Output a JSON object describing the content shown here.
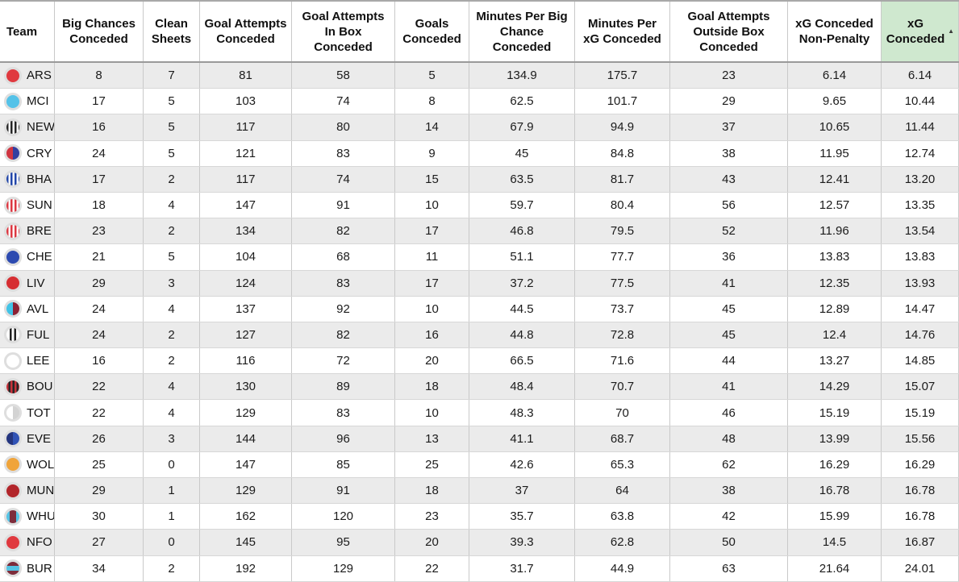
{
  "table": {
    "sort_indicator": "▲",
    "sorted_column": "xG Conceded",
    "sort_direction": "ascending",
    "colors": {
      "sorted_header_bg": "#cfe8cf",
      "stripe_row_bg": "#ebebeb",
      "cell_border": "#c9c9c9",
      "header_border": "#9a9a9a"
    },
    "columns": [
      {
        "label": "Team",
        "slug": "team",
        "sorted": false
      },
      {
        "label": "Big Chances Conceded",
        "slug": "big-chances-conceded",
        "sorted": false
      },
      {
        "label": "Clean Sheets",
        "slug": "clean-sheets",
        "sorted": false
      },
      {
        "label": "Goal Attempts Conceded",
        "slug": "goal-attempts-conceded",
        "sorted": false
      },
      {
        "label": "Goal Attempts In Box Conceded",
        "slug": "goal-attempts-in-box-conceded",
        "sorted": false
      },
      {
        "label": "Goals Conceded",
        "slug": "goals-conceded",
        "sorted": false
      },
      {
        "label": "Minutes Per Big Chance Conceded",
        "slug": "minutes-per-big-chance-conceded",
        "sorted": false
      },
      {
        "label": "Minutes Per xG Conceded",
        "slug": "minutes-per-xg-conceded",
        "sorted": false
      },
      {
        "label": "Goal Attempts Outside Box Conceded",
        "slug": "goal-attempts-outside-box-conceded",
        "sorted": false
      },
      {
        "label": "xG Conceded Non-Penalty",
        "slug": "xg-conceded-non-penalty",
        "sorted": false
      },
      {
        "label": "xG Conceded",
        "slug": "xg-conceded",
        "sorted": true
      }
    ],
    "rows": [
      {
        "team": "ARS",
        "badge_css": "#e0393f",
        "values": [
          "8",
          "7",
          "81",
          "58",
          "5",
          "134.9",
          "175.7",
          "23",
          "6.14",
          "6.14"
        ]
      },
      {
        "team": "MCI",
        "badge_css": "#54c2e8",
        "values": [
          "17",
          "5",
          "103",
          "74",
          "8",
          "62.5",
          "101.7",
          "29",
          "9.65",
          "10.44"
        ]
      },
      {
        "team": "NEW",
        "badge_css": "repeating-linear-gradient(90deg, #262626 0px 2.5px, #ffffff 2.5px 5px)",
        "values": [
          "16",
          "5",
          "117",
          "80",
          "14",
          "67.9",
          "94.9",
          "37",
          "10.65",
          "11.44"
        ]
      },
      {
        "team": "CRY",
        "badge_css": "linear-gradient(90deg, #cf3440 0 50%, #323fa0 50% 100%)",
        "values": [
          "24",
          "5",
          "121",
          "83",
          "9",
          "45",
          "84.8",
          "38",
          "11.95",
          "12.74"
        ]
      },
      {
        "team": "BHA",
        "badge_css": "repeating-linear-gradient(90deg, #2146a8 0px 2.5px, #ffffff 2.5px 5px)",
        "values": [
          "17",
          "2",
          "117",
          "74",
          "15",
          "63.5",
          "81.7",
          "43",
          "12.41",
          "13.20"
        ]
      },
      {
        "team": "SUN",
        "badge_css": "repeating-linear-gradient(90deg, #dc3741 0px 2.5px, #ffffff 2.5px 5px)",
        "values": [
          "18",
          "4",
          "147",
          "91",
          "10",
          "59.7",
          "80.4",
          "56",
          "12.57",
          "13.35"
        ]
      },
      {
        "team": "BRE",
        "badge_css": "repeating-linear-gradient(90deg, #dc3741 0px 2.5px, #ffffff 2.5px 5px)",
        "values": [
          "23",
          "2",
          "134",
          "82",
          "17",
          "46.8",
          "79.5",
          "52",
          "11.96",
          "13.54"
        ]
      },
      {
        "team": "CHE",
        "badge_css": "#2c4ab0",
        "values": [
          "21",
          "5",
          "104",
          "68",
          "11",
          "51.1",
          "77.7",
          "36",
          "13.83",
          "13.83"
        ]
      },
      {
        "team": "LIV",
        "badge_css": "#d62e32",
        "values": [
          "29",
          "3",
          "124",
          "83",
          "17",
          "37.2",
          "77.5",
          "41",
          "12.35",
          "13.93"
        ]
      },
      {
        "team": "AVL",
        "badge_css": "linear-gradient(90deg, #41c3e6 0 50%, #8c2134 50% 100%)",
        "values": [
          "24",
          "4",
          "137",
          "92",
          "10",
          "44.5",
          "73.7",
          "45",
          "12.89",
          "14.47"
        ]
      },
      {
        "team": "FUL",
        "badge_css": "linear-gradient(90deg, #ffffff 0 25%, #222222 25% 40%, #ffffff 40% 60%, #222222 60% 75%, #ffffff 75% 100%)",
        "values": [
          "24",
          "2",
          "127",
          "82",
          "16",
          "44.8",
          "72.8",
          "45",
          "12.4",
          "14.76"
        ]
      },
      {
        "team": "LEE",
        "badge_css": "#ffffff",
        "values": [
          "16",
          "2",
          "116",
          "72",
          "20",
          "66.5",
          "71.6",
          "44",
          "13.27",
          "14.85"
        ]
      },
      {
        "team": "BOU",
        "badge_css": "repeating-linear-gradient(90deg, #c8313a 0px 2.5px, #262626 2.5px 5px)",
        "values": [
          "22",
          "4",
          "130",
          "89",
          "18",
          "48.4",
          "70.7",
          "41",
          "14.29",
          "15.07"
        ]
      },
      {
        "team": "TOT",
        "badge_css": "linear-gradient(90deg, #ffffff 0 50%, #d3d3d3 50% 100%)",
        "values": [
          "22",
          "4",
          "129",
          "83",
          "10",
          "48.3",
          "70",
          "46",
          "15.19",
          "15.19"
        ]
      },
      {
        "team": "EVE",
        "badge_css": "linear-gradient(90deg, #24357e 0 50%, #3153b5 50% 100%)",
        "values": [
          "26",
          "3",
          "144",
          "96",
          "13",
          "41.1",
          "68.7",
          "48",
          "13.99",
          "15.56"
        ]
      },
      {
        "team": "WOL",
        "badge_css": "#f0a43a",
        "values": [
          "25",
          "0",
          "147",
          "85",
          "25",
          "42.6",
          "65.3",
          "62",
          "16.29",
          "16.29"
        ]
      },
      {
        "team": "MUN",
        "badge_css": "#b2252a",
        "values": [
          "29",
          "1",
          "129",
          "91",
          "18",
          "37",
          "64",
          "38",
          "16.78",
          "16.78"
        ]
      },
      {
        "team": "WHU",
        "badge_css": "linear-gradient(90deg, #55c3e4 0 24%, #7d2c3b 24% 76%, #55c3e4 76% 100%)",
        "values": [
          "30",
          "1",
          "162",
          "120",
          "23",
          "35.7",
          "63.8",
          "42",
          "15.99",
          "16.78"
        ]
      },
      {
        "team": "NFO",
        "badge_css": "#e0393f",
        "values": [
          "27",
          "0",
          "145",
          "95",
          "20",
          "39.3",
          "62.8",
          "50",
          "14.5",
          "16.87"
        ]
      },
      {
        "team": "BUR",
        "badge_css": "linear-gradient(180deg, #7d2c3b 0 32%, #55c3e4 32% 68%, #7d2c3b 68% 100%)",
        "values": [
          "34",
          "2",
          "192",
          "129",
          "22",
          "31.7",
          "44.9",
          "63",
          "21.64",
          "24.01"
        ]
      }
    ]
  }
}
